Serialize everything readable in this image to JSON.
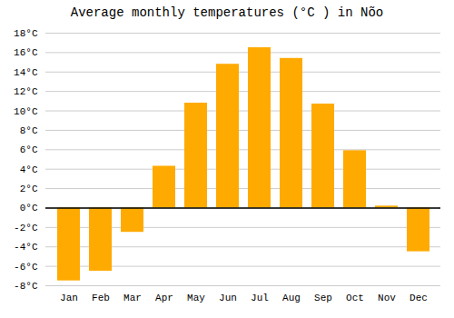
{
  "chart_data": {
    "type": "bar",
    "title": "Average monthly temperatures (°C ) in Nõo",
    "categories": [
      "Jan",
      "Feb",
      "Mar",
      "Apr",
      "May",
      "Jun",
      "Jul",
      "Aug",
      "Sep",
      "Oct",
      "Nov",
      "Dec"
    ],
    "values": [
      -7.5,
      -6.5,
      -2.5,
      4.3,
      10.8,
      14.8,
      16.5,
      15.4,
      10.7,
      5.9,
      0.2,
      -4.5
    ],
    "color": "#FFAA00",
    "ylim": [
      -8,
      18
    ],
    "yticks": [
      {
        "value": -8,
        "label": "-8°C"
      },
      {
        "value": -6,
        "label": "-6°C"
      },
      {
        "value": -4,
        "label": "-4°C"
      },
      {
        "value": -2,
        "label": "-2°C"
      },
      {
        "value": 0,
        "label": "0°C"
      },
      {
        "value": 2,
        "label": "2°C"
      },
      {
        "value": 4,
        "label": "4°C"
      },
      {
        "value": 6,
        "label": "6°C"
      },
      {
        "value": 8,
        "label": "8°C"
      },
      {
        "value": 10,
        "label": "10°C"
      },
      {
        "value": 12,
        "label": "12°C"
      },
      {
        "value": 14,
        "label": "14°C"
      },
      {
        "value": 16,
        "label": "16°C"
      },
      {
        "value": 18,
        "label": "18°C"
      }
    ],
    "grid": true
  }
}
